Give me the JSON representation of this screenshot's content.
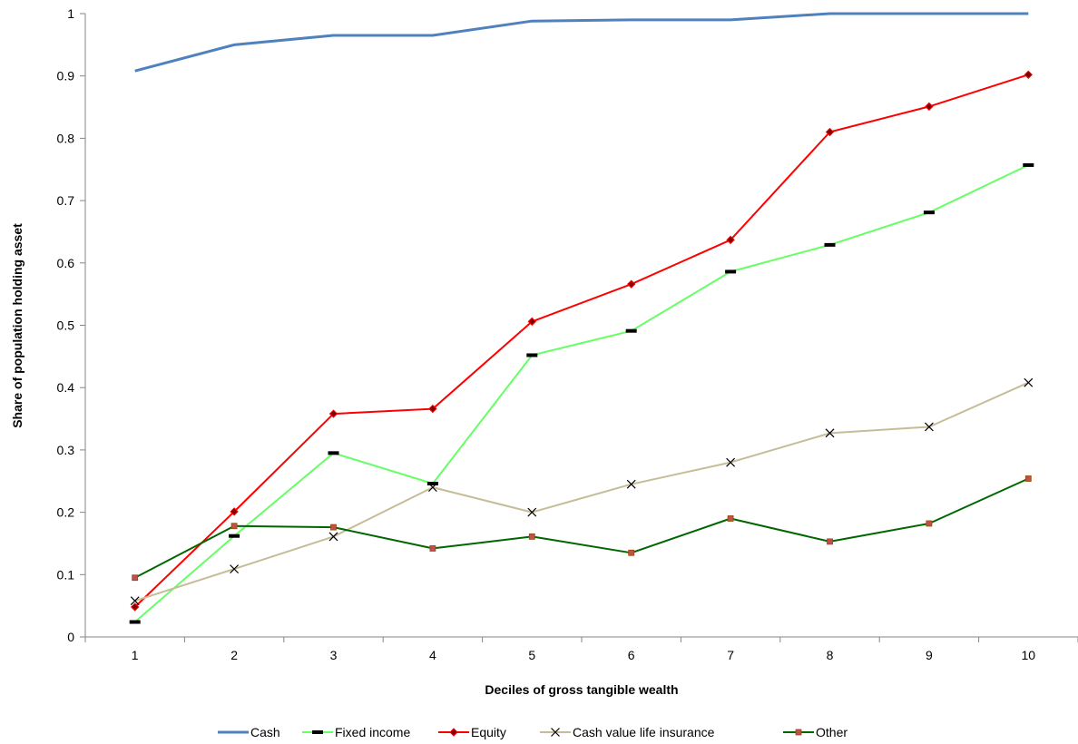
{
  "chart_data": {
    "type": "line",
    "xlabel": "Deciles of gross tangible wealth",
    "ylabel": "Share of population holding asset",
    "categories": [
      "1",
      "2",
      "3",
      "4",
      "5",
      "6",
      "7",
      "8",
      "9",
      "10"
    ],
    "ylim": [
      0,
      1
    ],
    "yticks": [
      "0",
      "0.1",
      "0.2",
      "0.3",
      "0.4",
      "0.5",
      "0.6",
      "0.7",
      "0.8",
      "0.9",
      "1"
    ],
    "grid": false,
    "legend_position": "bottom",
    "series": [
      {
        "name": "Cash",
        "color": "#4F81BD",
        "marker": "none",
        "values": [
          0.908,
          0.95,
          0.965,
          0.965,
          0.988,
          0.99,
          0.99,
          1.0,
          1.0,
          1.0
        ]
      },
      {
        "name": "Fixed income",
        "color": "#66FF66",
        "marker": "dash",
        "values": [
          0.024,
          0.162,
          0.295,
          0.246,
          0.452,
          0.491,
          0.586,
          0.629,
          0.681,
          0.757
        ]
      },
      {
        "name": "Equity",
        "color": "#FF0000",
        "marker": "diamond",
        "values": [
          0.048,
          0.201,
          0.358,
          0.366,
          0.506,
          0.566,
          0.637,
          0.81,
          0.851,
          0.902
        ]
      },
      {
        "name": "Cash value life insurance",
        "color": "#C4BD97",
        "marker": "x",
        "values": [
          0.058,
          0.109,
          0.161,
          0.24,
          0.2,
          0.245,
          0.28,
          0.327,
          0.337,
          0.408
        ]
      },
      {
        "name": "Other",
        "color": "#006600",
        "marker": "square",
        "values": [
          0.095,
          0.178,
          0.176,
          0.142,
          0.161,
          0.135,
          0.19,
          0.153,
          0.182,
          0.254
        ]
      }
    ]
  }
}
